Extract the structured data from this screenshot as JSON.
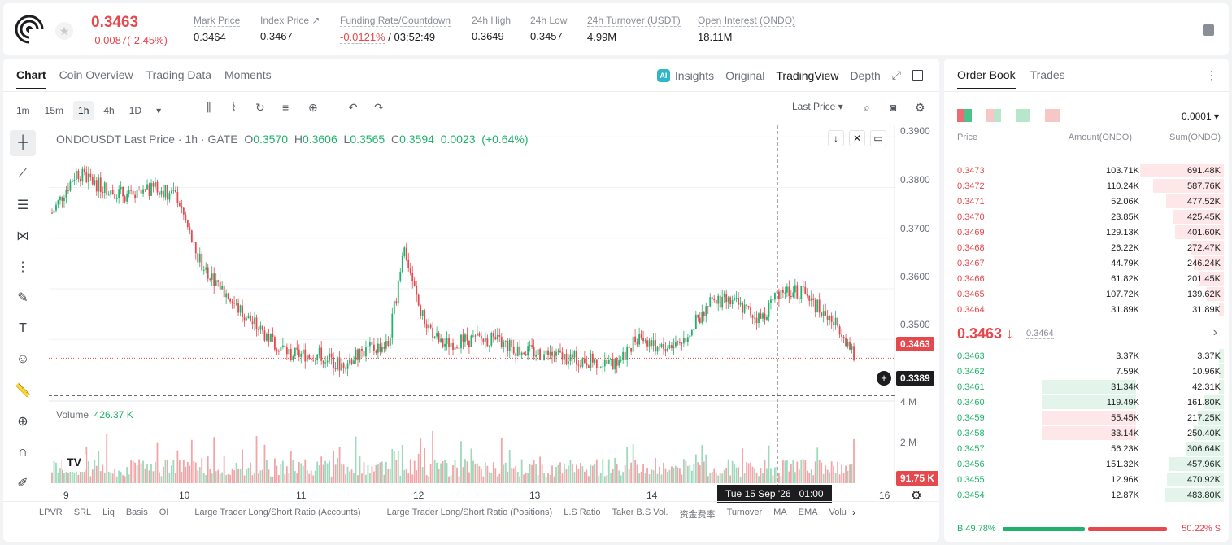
{
  "ticker": {
    "last_price": "0.3463",
    "change": "-0.0087(-2.45%)"
  },
  "stats": [
    {
      "label": "Mark Price",
      "value": "0.3464"
    },
    {
      "label": "Index Price ↗",
      "value": "0.3467"
    },
    {
      "label": "Funding Rate/Countdown",
      "value_red": "-0.0121%",
      "value": " / 03:52:49"
    },
    {
      "label": "24h High",
      "value": "0.3649"
    },
    {
      "label": "24h Low",
      "value": "0.3457"
    },
    {
      "label": "24h Turnover (USDT)",
      "value": "4.99M"
    },
    {
      "label": "Open Interest (ONDO)",
      "value": "18.11M"
    }
  ],
  "chart_tabs": [
    "Chart",
    "Coin Overview",
    "Trading Data",
    "Moments"
  ],
  "view_tabs": [
    "Insights",
    "Original",
    "TradingView",
    "Depth"
  ],
  "timeframes": [
    "1m",
    "15m",
    "1h",
    "4h",
    "1D"
  ],
  "price_type": "Last Price",
  "legend": {
    "symbol": "ONDOUSDT Last Price · 1h · GATE",
    "o_lbl": "O",
    "o": "0.3570",
    "h_lbl": "H",
    "h": "0.3606",
    "l_lbl": "L",
    "l": "0.3565",
    "c_lbl": "C",
    "c": "0.3594",
    "chg": "0.0023",
    "pct": "(+0.64%)"
  },
  "volume": {
    "label": "Volume",
    "value": "426.37 K"
  },
  "price_tag": "0.3463",
  "cursor_tag": "0.3389",
  "vol_tag": "91.75 K",
  "cursor_time": "Tue 15 Sep '26   01:00",
  "bottom_indicators": [
    "LPVR",
    "SRL",
    "Liq",
    "Basis",
    "OI",
    "Large Trader Long/Short Ratio (Accounts)",
    "Large Trader Long/Short Ratio (Positions)",
    "L.S Ratio",
    "Taker B.S Vol.",
    "资金费率",
    "Turnover",
    "MA",
    "EMA",
    "Volu"
  ],
  "orderbook": {
    "tabs": [
      "Order Book",
      "Trades"
    ],
    "precision": "0.0001",
    "headers": {
      "price": "Price",
      "amount": "Amount(ONDO)",
      "sum": "Sum(ONDO)"
    },
    "mid_price": "0.3463 ↓",
    "mark": "0.3464",
    "asks": [
      [
        "0.3473",
        "103.71K",
        "691.48K"
      ],
      [
        "0.3472",
        "110.24K",
        "587.76K"
      ],
      [
        "0.3471",
        "52.06K",
        "477.52K"
      ],
      [
        "0.3470",
        "23.85K",
        "425.45K"
      ],
      [
        "0.3469",
        "129.13K",
        "401.60K"
      ],
      [
        "0.3468",
        "26.22K",
        "272.47K"
      ],
      [
        "0.3467",
        "44.79K",
        "246.24K"
      ],
      [
        "0.3466",
        "61.82K",
        "201.45K"
      ],
      [
        "0.3465",
        "107.72K",
        "139.62K"
      ],
      [
        "0.3464",
        "31.89K",
        "31.89K"
      ]
    ],
    "bids": [
      [
        "0.3463",
        "3.37K",
        "3.37K"
      ],
      [
        "0.3462",
        "7.59K",
        "10.96K"
      ],
      [
        "0.3461",
        "31.34K",
        "42.31K"
      ],
      [
        "0.3460",
        "119.49K",
        "161.80K"
      ],
      [
        "0.3459",
        "55.45K",
        "217.25K"
      ],
      [
        "0.3458",
        "33.14K",
        "250.40K"
      ],
      [
        "0.3457",
        "56.23K",
        "306.64K"
      ],
      [
        "0.3456",
        "151.32K",
        "457.96K"
      ],
      [
        "0.3455",
        "12.96K",
        "470.92K"
      ],
      [
        "0.3454",
        "12.87K",
        "483.80K"
      ]
    ],
    "buy_ratio": "B 49.78%",
    "sell_ratio": "50.22% S",
    "buy_pct": 49.78
  },
  "chart_data": {
    "type": "candlestick",
    "yaxis_ticks": [
      "0.3900",
      "0.3800",
      "0.3700",
      "0.3600",
      "0.3500"
    ],
    "vol_ticks": [
      "4 M",
      "2 M"
    ],
    "xaxis_ticks": [
      "9",
      "10",
      "11",
      "12",
      "13",
      "14",
      "16"
    ],
    "ylim": [
      0.338,
      0.391
    ],
    "colors": {
      "up": "#20b26c",
      "down": "#e5484d"
    }
  }
}
